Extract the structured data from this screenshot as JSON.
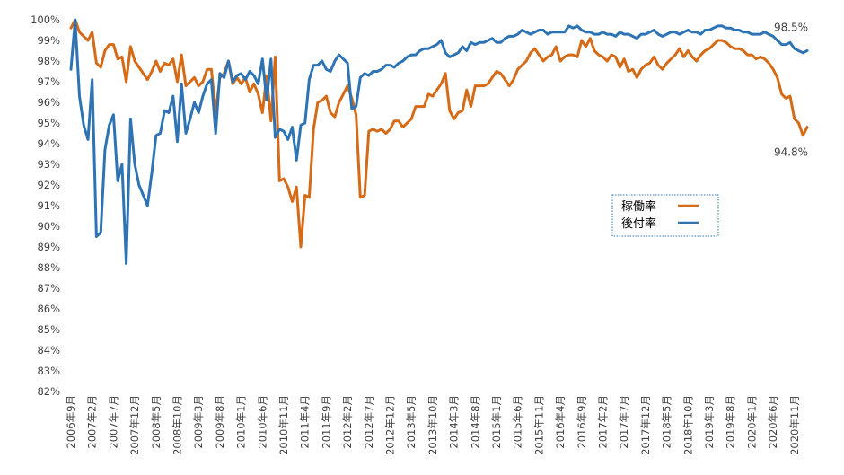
{
  "chart_data": {
    "type": "line",
    "title": "",
    "xlabel": "",
    "ylabel": "",
    "ylim": [
      82,
      100
    ],
    "y_ticks": [
      "82%",
      "83%",
      "84%",
      "85%",
      "86%",
      "87%",
      "88%",
      "89%",
      "90%",
      "91%",
      "92%",
      "93%",
      "94%",
      "95%",
      "96%",
      "97%",
      "98%",
      "99%",
      "100%"
    ],
    "x_tick_labels": [
      "2006年9月",
      "2007年2月",
      "2007年7月",
      "2007年12月",
      "2008年5月",
      "2008年10月",
      "2009年3月",
      "2009年8月",
      "2010年1月",
      "2010年6月",
      "2010年11月",
      "2011年4月",
      "2011年9月",
      "2012年2月",
      "2012年7月",
      "2012年12月",
      "2013年5月",
      "2013年10月",
      "2014年3月",
      "2014年8月",
      "2015年1月",
      "2015年6月",
      "2015年11月",
      "2016年4月",
      "2016年9月",
      "2017年2月",
      "2017年7月",
      "2017年12月",
      "2018年5月",
      "2018年10月",
      "2019年3月",
      "2019年8月",
      "2020年1月",
      "2020年6月",
      "2020年11月"
    ],
    "x_start": "2006年9月",
    "grid": false,
    "legend_placement": "right-center",
    "series": [
      {
        "name": "稼働率",
        "color": "#D56A17",
        "values": [
          99.6,
          100,
          99.4,
          99.2,
          99.0,
          99.4,
          97.9,
          97.7,
          98.5,
          98.8,
          98.8,
          98.1,
          98.2,
          97.0,
          98.7,
          98.0,
          97.7,
          97.4,
          97.1,
          97.5,
          98.0,
          97.5,
          97.9,
          97.8,
          98.1,
          97.0,
          98.3,
          96.8,
          97.0,
          97.2,
          96.8,
          97.0,
          97.6,
          97.6,
          95.5,
          97.2,
          97.4,
          98.0,
          96.9,
          97.2,
          96.9,
          97.2,
          96.5,
          96.9,
          96.4,
          95.5,
          97.3,
          95.1,
          98.2,
          92.2,
          92.3,
          91.9,
          91.2,
          91.9,
          89.0,
          91.5,
          91.4,
          94.7,
          96.0,
          96.1,
          96.3,
          95.5,
          95.3,
          96.0,
          96.4,
          96.8,
          96.2,
          95.4,
          91.4,
          91.5,
          94.6,
          94.7,
          94.6,
          94.7,
          94.5,
          94.7,
          95.1,
          95.1,
          94.8,
          95.0,
          95.2,
          95.8,
          95.8,
          95.8,
          96.4,
          96.3,
          96.6,
          96.9,
          97.4,
          95.6,
          95.2,
          95.5,
          95.6,
          96.6,
          95.8,
          96.8,
          96.8,
          96.8,
          96.9,
          97.2,
          97.5,
          97.4,
          97.1,
          96.8,
          97.1,
          97.6,
          97.8,
          98.0,
          98.4,
          98.6,
          98.3,
          98.0,
          98.2,
          98.3,
          98.7,
          98.0,
          98.2,
          98.3,
          98.3,
          98.2,
          99.0,
          98.7,
          99.1,
          98.5,
          98.3,
          98.2,
          98.0,
          98.3,
          98.2,
          97.7,
          98.1,
          97.5,
          97.6,
          97.2,
          97.6,
          97.8,
          97.9,
          98.2,
          97.8,
          97.6,
          97.9,
          98.1,
          98.3,
          98.6,
          98.2,
          98.5,
          98.2,
          98.0,
          98.3,
          98.5,
          98.6,
          98.8,
          99.0,
          99.0,
          98.9,
          98.7,
          98.6,
          98.6,
          98.5,
          98.3,
          98.3,
          98.1,
          98.2,
          98.1,
          97.9,
          97.6,
          97.2,
          96.4,
          96.2,
          96.3,
          95.2,
          95.0,
          94.4,
          94.8
        ]
      },
      {
        "name": "後付率",
        "color": "#2E74B5",
        "values": [
          97.6,
          100,
          96.3,
          94.9,
          94.2,
          97.1,
          89.5,
          89.7,
          93.7,
          94.9,
          95.4,
          92.2,
          93.0,
          88.2,
          95.2,
          93.0,
          92.0,
          91.5,
          91.0,
          92.6,
          94.4,
          94.5,
          95.6,
          95.5,
          96.3,
          94.1,
          96.9,
          94.5,
          95.2,
          96.0,
          95.5,
          96.3,
          96.9,
          97.1,
          94.5,
          97.4,
          97.2,
          98.0,
          97.0,
          97.3,
          97.4,
          97.1,
          97.5,
          97.3,
          96.9,
          98.1,
          96.1,
          98.1,
          94.3,
          94.7,
          94.6,
          94.2,
          94.8,
          93.2,
          94.9,
          95.0,
          97.1,
          97.8,
          97.8,
          98.0,
          97.6,
          97.5,
          98.0,
          98.3,
          98.1,
          97.9,
          95.7,
          95.8,
          97.2,
          97.4,
          97.3,
          97.5,
          97.5,
          97.6,
          97.8,
          97.8,
          97.7,
          97.9,
          98.0,
          98.2,
          98.3,
          98.3,
          98.5,
          98.6,
          98.6,
          98.7,
          98.8,
          99.0,
          98.4,
          98.2,
          98.3,
          98.4,
          98.7,
          98.5,
          98.9,
          98.8,
          98.9,
          98.9,
          99.0,
          99.1,
          98.9,
          98.9,
          99.1,
          99.2,
          99.2,
          99.3,
          99.5,
          99.4,
          99.3,
          99.4,
          99.5,
          99.5,
          99.3,
          99.4,
          99.4,
          99.4,
          99.4,
          99.7,
          99.6,
          99.7,
          99.5,
          99.4,
          99.4,
          99.3,
          99.3,
          99.4,
          99.3,
          99.3,
          99.2,
          99.4,
          99.3,
          99.3,
          99.2,
          99.1,
          99.3,
          99.3,
          99.4,
          99.5,
          99.3,
          99.2,
          99.3,
          99.4,
          99.4,
          99.3,
          99.4,
          99.5,
          99.4,
          99.4,
          99.3,
          99.5,
          99.5,
          99.6,
          99.7,
          99.7,
          99.6,
          99.6,
          99.5,
          99.5,
          99.4,
          99.4,
          99.3,
          99.3,
          99.3,
          99.4,
          99.3,
          99.2,
          99.0,
          98.8,
          98.8,
          98.9,
          98.6,
          98.5,
          98.4,
          98.5
        ]
      }
    ],
    "annotations": [
      {
        "text": "98.5%",
        "series": "後付率"
      },
      {
        "text": "94.8%",
        "series": "稼働率"
      }
    ]
  }
}
